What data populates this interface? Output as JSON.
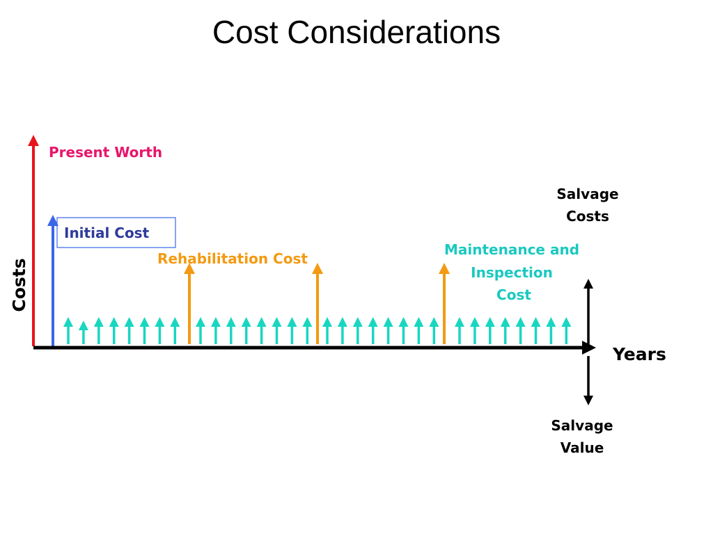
{
  "title": "Cost Considerations",
  "axis": {
    "y_label": "Costs",
    "x_label": "Years"
  },
  "labels": {
    "present_worth": "Present Worth",
    "initial_cost": "Initial Cost",
    "rehabilitation_cost": "Rehabilitation Cost",
    "maintenance": [
      "Maintenance and",
      "Inspection",
      "Cost"
    ],
    "salvage_costs": [
      "Salvage",
      "Costs"
    ],
    "salvage_value": [
      "Salvage",
      "Value"
    ]
  }
}
